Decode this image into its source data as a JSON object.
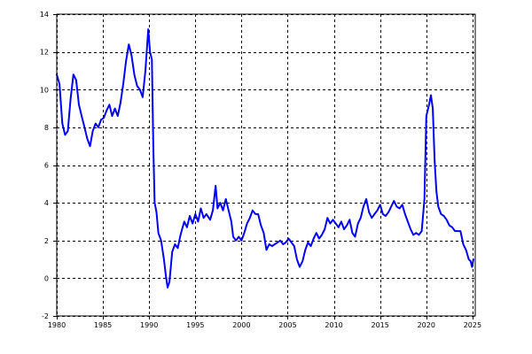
{
  "chart_data": {
    "type": "line",
    "title": "",
    "xlabel": "",
    "ylabel": "",
    "xlim": [
      1980,
      2025.3
    ],
    "ylim": [
      -2,
      14
    ],
    "grid": true,
    "x_ticks": [
      1980,
      1985,
      1990,
      1995,
      2000,
      2005,
      2010,
      2015,
      2020,
      2025
    ],
    "x_tick_labels": [
      "1980",
      "1985",
      "1990",
      "1995",
      "2000",
      "2005",
      "2010",
      "2015",
      "2020",
      "2025"
    ],
    "y_ticks": [
      -2,
      0,
      2,
      4,
      6,
      8,
      10,
      12,
      14
    ],
    "y_tick_labels": [
      "-2",
      "0",
      "2",
      "4",
      "6",
      "8",
      "10",
      "12",
      "14"
    ],
    "colors": {
      "series": "#0000ff",
      "grid": "#000000",
      "background": "#ffffff"
    },
    "series": [
      {
        "points": [
          [
            1980.0,
            10.8
          ],
          [
            1980.3,
            10.3
          ],
          [
            1980.6,
            8.2
          ],
          [
            1980.9,
            7.6
          ],
          [
            1981.2,
            7.8
          ],
          [
            1981.5,
            9.5
          ],
          [
            1981.8,
            10.8
          ],
          [
            1982.1,
            10.5
          ],
          [
            1982.4,
            9.2
          ],
          [
            1982.7,
            8.6
          ],
          [
            1983.0,
            8.0
          ],
          [
            1983.3,
            7.4
          ],
          [
            1983.6,
            7.0
          ],
          [
            1983.9,
            7.8
          ],
          [
            1984.2,
            8.2
          ],
          [
            1984.5,
            8.0
          ],
          [
            1984.8,
            8.4
          ],
          [
            1985.1,
            8.5
          ],
          [
            1985.4,
            8.9
          ],
          [
            1985.7,
            9.2
          ],
          [
            1986.0,
            8.6
          ],
          [
            1986.3,
            9.0
          ],
          [
            1986.6,
            8.6
          ],
          [
            1986.9,
            9.3
          ],
          [
            1987.2,
            10.3
          ],
          [
            1987.5,
            11.5
          ],
          [
            1987.8,
            12.4
          ],
          [
            1988.1,
            11.8
          ],
          [
            1988.4,
            10.8
          ],
          [
            1988.7,
            10.2
          ],
          [
            1989.0,
            10.0
          ],
          [
            1989.3,
            9.6
          ],
          [
            1989.6,
            11.0
          ],
          [
            1989.9,
            13.2
          ],
          [
            1990.1,
            12.0
          ],
          [
            1990.3,
            11.6
          ],
          [
            1990.45,
            7.0
          ],
          [
            1990.6,
            4.0
          ],
          [
            1990.8,
            3.5
          ],
          [
            1991.0,
            2.4
          ],
          [
            1991.3,
            2.0
          ],
          [
            1991.6,
            1.0
          ],
          [
            1991.8,
            0.2
          ],
          [
            1992.0,
            -0.5
          ],
          [
            1992.2,
            -0.2
          ],
          [
            1992.5,
            1.4
          ],
          [
            1992.8,
            1.8
          ],
          [
            1993.1,
            1.6
          ],
          [
            1993.4,
            2.3
          ],
          [
            1993.8,
            3.0
          ],
          [
            1994.1,
            2.7
          ],
          [
            1994.4,
            3.3
          ],
          [
            1994.7,
            2.9
          ],
          [
            1995.0,
            3.4
          ],
          [
            1995.3,
            3.0
          ],
          [
            1995.6,
            3.7
          ],
          [
            1995.9,
            3.2
          ],
          [
            1996.2,
            3.4
          ],
          [
            1996.6,
            3.1
          ],
          [
            1996.9,
            3.6
          ],
          [
            1997.2,
            4.9
          ],
          [
            1997.4,
            3.7
          ],
          [
            1997.7,
            4.0
          ],
          [
            1998.0,
            3.6
          ],
          [
            1998.3,
            4.2
          ],
          [
            1998.6,
            3.6
          ],
          [
            1998.9,
            3.0
          ],
          [
            1999.1,
            2.2
          ],
          [
            1999.4,
            2.0
          ],
          [
            1999.7,
            2.2
          ],
          [
            2000.0,
            2.0
          ],
          [
            2000.3,
            2.4
          ],
          [
            2000.6,
            2.9
          ],
          [
            2000.9,
            3.2
          ],
          [
            2001.2,
            3.6
          ],
          [
            2001.5,
            3.4
          ],
          [
            2001.8,
            3.4
          ],
          [
            2002.1,
            2.8
          ],
          [
            2002.4,
            2.4
          ],
          [
            2002.7,
            1.5
          ],
          [
            2003.0,
            1.8
          ],
          [
            2003.3,
            1.7
          ],
          [
            2003.6,
            1.8
          ],
          [
            2003.9,
            1.9
          ],
          [
            2004.2,
            2.0
          ],
          [
            2004.5,
            1.8
          ],
          [
            2004.8,
            1.9
          ],
          [
            2005.1,
            2.1
          ],
          [
            2005.4,
            1.9
          ],
          [
            2005.7,
            1.7
          ],
          [
            2006.0,
            1.0
          ],
          [
            2006.3,
            0.6
          ],
          [
            2006.6,
            0.9
          ],
          [
            2006.9,
            1.5
          ],
          [
            2007.2,
            1.9
          ],
          [
            2007.5,
            1.7
          ],
          [
            2007.8,
            2.1
          ],
          [
            2008.1,
            2.4
          ],
          [
            2008.4,
            2.1
          ],
          [
            2008.7,
            2.3
          ],
          [
            2009.0,
            2.6
          ],
          [
            2009.3,
            3.2
          ],
          [
            2009.6,
            2.9
          ],
          [
            2009.9,
            3.1
          ],
          [
            2010.2,
            2.9
          ],
          [
            2010.5,
            2.7
          ],
          [
            2010.8,
            3.0
          ],
          [
            2011.1,
            2.6
          ],
          [
            2011.4,
            2.8
          ],
          [
            2011.7,
            3.1
          ],
          [
            2012.0,
            2.4
          ],
          [
            2012.3,
            2.2
          ],
          [
            2012.6,
            2.9
          ],
          [
            2012.9,
            3.2
          ],
          [
            2013.2,
            3.8
          ],
          [
            2013.5,
            4.2
          ],
          [
            2013.8,
            3.5
          ],
          [
            2014.1,
            3.2
          ],
          [
            2014.4,
            3.4
          ],
          [
            2014.7,
            3.6
          ],
          [
            2015.0,
            3.9
          ],
          [
            2015.3,
            3.4
          ],
          [
            2015.6,
            3.3
          ],
          [
            2015.9,
            3.5
          ],
          [
            2016.2,
            3.8
          ],
          [
            2016.5,
            4.1
          ],
          [
            2016.8,
            3.8
          ],
          [
            2017.1,
            3.7
          ],
          [
            2017.4,
            3.9
          ],
          [
            2017.7,
            3.4
          ],
          [
            2018.0,
            3.0
          ],
          [
            2018.3,
            2.6
          ],
          [
            2018.6,
            2.3
          ],
          [
            2018.9,
            2.4
          ],
          [
            2019.2,
            2.3
          ],
          [
            2019.5,
            2.5
          ],
          [
            2019.8,
            4.2
          ],
          [
            2020.0,
            8.6
          ],
          [
            2020.3,
            9.2
          ],
          [
            2020.5,
            9.7
          ],
          [
            2020.7,
            9.0
          ],
          [
            2020.9,
            6.2
          ],
          [
            2021.1,
            4.6
          ],
          [
            2021.3,
            3.8
          ],
          [
            2021.6,
            3.4
          ],
          [
            2021.9,
            3.3
          ],
          [
            2022.2,
            3.1
          ],
          [
            2022.5,
            2.8
          ],
          [
            2022.8,
            2.7
          ],
          [
            2023.1,
            2.5
          ],
          [
            2023.4,
            2.5
          ],
          [
            2023.7,
            2.5
          ],
          [
            2024.0,
            1.8
          ],
          [
            2024.3,
            1.5
          ],
          [
            2024.6,
            1.0
          ],
          [
            2024.8,
            0.9
          ],
          [
            2024.95,
            0.6
          ],
          [
            2025.1,
            1.0
          ]
        ]
      }
    ]
  }
}
